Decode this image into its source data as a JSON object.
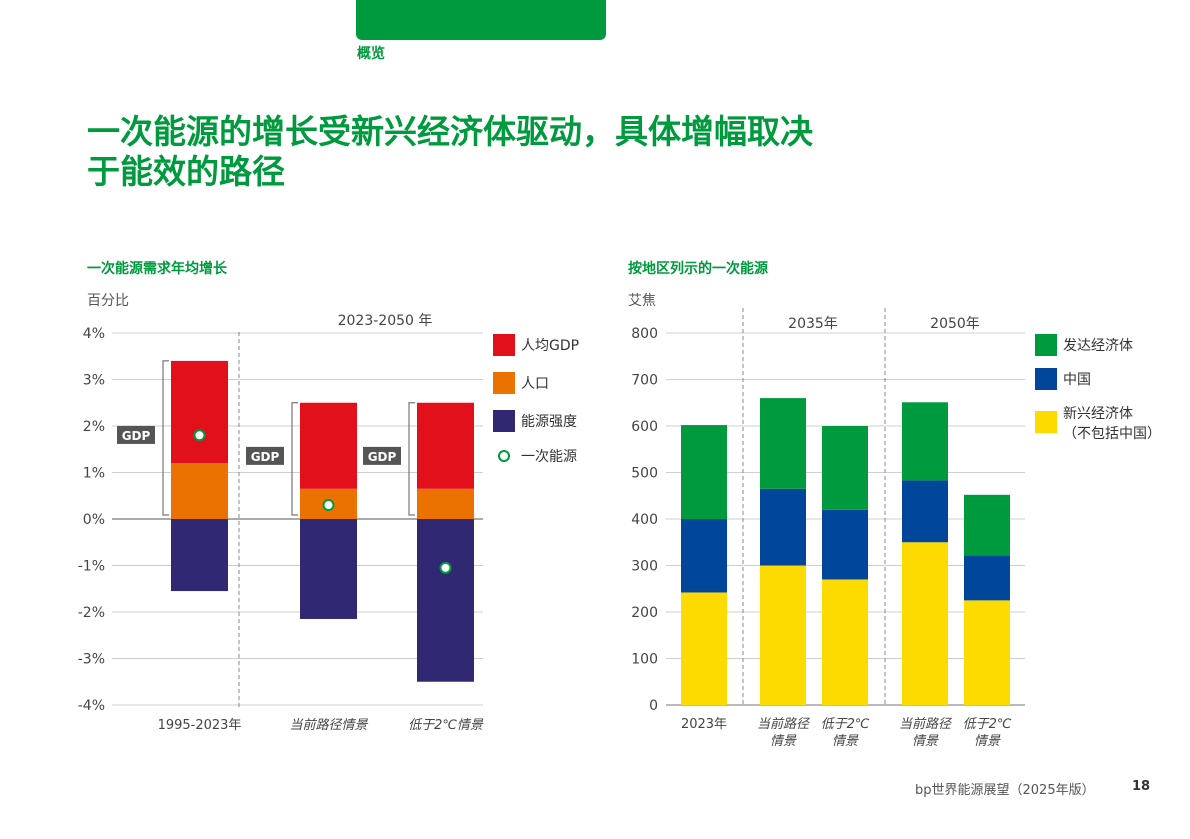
{
  "header": {
    "section": "概览",
    "title_line1": "一次能源的增长受新兴经济体驱动，具体增幅取决",
    "title_line2": "于能效的路径"
  },
  "colors": {
    "brand_green": "#009a3e",
    "gdp_per_capita": "#e2101b",
    "population": "#ec7200",
    "energy_intensity": "#312873",
    "developed": "#009a3e",
    "china": "#00479c",
    "emerging": "#fddb00"
  },
  "chart_data": [
    {
      "type": "bar",
      "stacked": true,
      "title": "一次能源需求年均增长",
      "unit": "百分比",
      "group_label": "2023-2050 年",
      "categories": [
        "1995-2023年",
        "当前路径情景",
        "低于2℃情景"
      ],
      "series": [
        {
          "name": "人均GDP",
          "values": [
            2.2,
            1.85,
            1.85
          ]
        },
        {
          "name": "人口",
          "values": [
            1.2,
            0.65,
            0.65
          ]
        },
        {
          "name": "能源强度",
          "values": [
            -1.55,
            -2.15,
            -3.5
          ]
        }
      ],
      "markers": {
        "name": "一次能源",
        "values": [
          1.8,
          0.3,
          -1.05
        ]
      },
      "bracket_label": "GDP",
      "yticks": [
        "4%",
        "3%",
        "2%",
        "1%",
        "0%",
        "-1%",
        "-2%",
        "-3%",
        "-4%"
      ],
      "ylim": [
        -4,
        4
      ],
      "grid": true,
      "legend": "right"
    },
    {
      "type": "bar",
      "stacked": true,
      "title": "按地区列示的一次能源",
      "unit": "艾焦",
      "group_labels": [
        "2035年",
        "2050年"
      ],
      "categories": [
        "2023年",
        "当前路径情景",
        "低于2℃情景",
        "当前路径情景",
        "低于2℃情景"
      ],
      "category_lines": [
        [
          "2023年"
        ],
        [
          "当前路径",
          "情景"
        ],
        [
          "低于2℃",
          "情景"
        ],
        [
          "当前路径",
          "情景"
        ],
        [
          "低于2℃",
          "情景"
        ]
      ],
      "series": [
        {
          "name": "新兴经济体",
          "label_lines": [
            "新兴经济体",
            "（不包括中国）"
          ],
          "values": [
            242,
            300,
            270,
            350,
            225
          ]
        },
        {
          "name": "中国",
          "values": [
            158,
            165,
            150,
            133,
            97
          ]
        },
        {
          "name": "发达经济体",
          "values": [
            202,
            195,
            180,
            168,
            130
          ]
        }
      ],
      "yticks": [
        "800",
        "700",
        "600",
        "500",
        "400",
        "300",
        "200",
        "100",
        "0"
      ],
      "ylim": [
        0,
        800
      ],
      "grid": true,
      "legend": "right"
    }
  ],
  "footer": {
    "text": "bp世界能源展望（2025年版）",
    "page": "18"
  }
}
